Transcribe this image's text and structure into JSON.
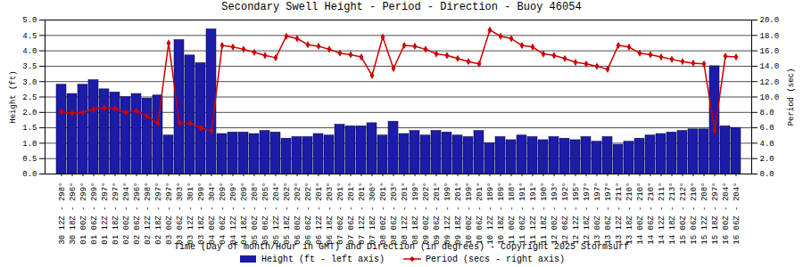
{
  "chart_data": {
    "type": "bar",
    "title": "Secondary Swell Height - Period - Direction - Buoy 46054",
    "xlabel": "Time (Day of month/Hour in GMT) and Direction (in degrees) - Copyright 2025 Stormsurf",
    "ylabel": "Height (ft)",
    "y2label": "Period (sec)",
    "categories": [
      "30 12Z - 298°",
      "30 18Z - 296°",
      "01 00Z - 299°",
      "01 06Z - 299°",
      "01 12Z - 297°",
      "01 18Z - 297°",
      "02 00Z - 294°",
      "02 06Z - 296°",
      "02 12Z - 298°",
      "02 18Z - 297°",
      "03 00Z - 297°",
      "03 06Z - 303°",
      "03 12Z - 301°",
      "03 18Z - 299°",
      "04 00Z - 304°",
      "04 06Z - 209°",
      "04 12Z - 209°",
      "04 18Z - 209°",
      "05 00Z - 208°",
      "05 06Z - 205°",
      "05 12Z - 204°",
      "05 18Z - 202°",
      "06 00Z - 202°",
      "06 06Z - 202°",
      "06 12Z - 201°",
      "06 18Z - 203°",
      "07 00Z - 201°",
      "07 06Z - 201°",
      "07 12Z - 201°",
      "07 18Z - 300°",
      "08 00Z - 201°",
      "08 06Z - 203°",
      "08 12Z - 201°",
      "08 18Z - 199°",
      "09 00Z - 202°",
      "09 06Z - 201°",
      "09 12Z - 199°",
      "09 18Z - 201°",
      "10 00Z - 199°",
      "10 06Z - 201°",
      "10 12Z - 189°",
      "10 18Z - 189°",
      "11 00Z - 188°",
      "11 06Z - 191°",
      "11 12Z - 191°",
      "11 18Z - 190°",
      "12 00Z - 193°",
      "12 06Z - 192°",
      "12 12Z - 195°",
      "12 18Z - 197°",
      "13 00Z - 197°",
      "13 06Z - 197°",
      "13 12Z - 211°",
      "13 18Z - 210°",
      "14 00Z - 210°",
      "14 06Z - 210°",
      "14 12Z - 211°",
      "14 18Z - 213°",
      "15 00Z - 212°",
      "15 06Z - 210°",
      "15 12Z - 208°",
      "15 18Z - 297°",
      "16 00Z - 204°",
      "16 06Z - 204°"
    ],
    "series": [
      {
        "name": "Height (ft - left axis)",
        "type": "bar",
        "color": "#1c1ca8",
        "values": [
          2.9,
          2.6,
          2.9,
          3.05,
          2.75,
          2.65,
          2.5,
          2.6,
          2.45,
          2.55,
          1.25,
          4.35,
          3.85,
          3.6,
          4.7,
          1.3,
          1.35,
          1.35,
          1.3,
          1.4,
          1.35,
          1.15,
          1.2,
          1.2,
          1.3,
          1.25,
          1.6,
          1.55,
          1.55,
          1.65,
          1.25,
          1.7,
          1.3,
          1.4,
          1.25,
          1.4,
          1.35,
          1.25,
          1.2,
          1.4,
          1.0,
          1.2,
          1.1,
          1.25,
          1.2,
          1.1,
          1.2,
          1.15,
          1.1,
          1.2,
          1.05,
          1.2,
          0.95,
          1.05,
          1.15,
          1.25,
          1.3,
          1.35,
          1.4,
          1.45,
          1.45,
          3.5,
          1.55,
          1.5
        ]
      },
      {
        "name": "Period (secs - right axis)",
        "type": "line",
        "axis": "y2",
        "color": "#cc0000",
        "marker": "diamond",
        "line_style": "solid",
        "values": [
          8.1,
          7.9,
          8.0,
          8.4,
          8.6,
          8.5,
          8.0,
          8.2,
          7.5,
          6.6,
          17.0,
          6.6,
          6.6,
          6.0,
          5.6,
          16.7,
          16.5,
          16.2,
          15.8,
          15.4,
          15.1,
          17.9,
          17.6,
          16.8,
          16.6,
          16.2,
          15.7,
          15.5,
          15.2,
          12.8,
          17.8,
          13.7,
          16.7,
          16.6,
          16.2,
          15.6,
          15.4,
          15.0,
          14.6,
          14.3,
          18.7,
          17.9,
          17.6,
          16.7,
          16.5,
          15.6,
          15.4,
          15.0,
          14.5,
          14.3,
          14.0,
          13.6,
          16.7,
          16.5,
          15.7,
          15.5,
          15.2,
          14.9,
          14.6,
          14.4,
          14.3,
          5.6,
          15.3,
          15.2
        ]
      }
    ],
    "ylim": [
      0,
      5
    ],
    "yticks": [
      {
        "value": 0,
        "label": "0.0"
      },
      {
        "value": 0.5,
        "label": "0.5"
      },
      {
        "value": 1,
        "label": "1.0"
      },
      {
        "value": 1.5,
        "label": "1.5"
      },
      {
        "value": 2,
        "label": "2.0"
      },
      {
        "value": 2.5,
        "label": "2.5"
      },
      {
        "value": 3,
        "label": "3.0"
      },
      {
        "value": 3.5,
        "label": "3.5"
      },
      {
        "value": 4,
        "label": "4.0"
      },
      {
        "value": 4.5,
        "label": "4.5"
      },
      {
        "value": 5,
        "label": "5.0"
      }
    ],
    "y2lim": [
      0,
      20
    ],
    "y2ticks": [
      {
        "value": 0,
        "label": "0.0"
      },
      {
        "value": 2,
        "label": "2.0"
      },
      {
        "value": 4,
        "label": "4.0"
      },
      {
        "value": 6,
        "label": "6.0"
      },
      {
        "value": 8,
        "label": "8.0"
      },
      {
        "value": 10,
        "label": "10.0"
      },
      {
        "value": 12,
        "label": "12.0"
      },
      {
        "value": 14,
        "label": "14.0"
      },
      {
        "value": 16,
        "label": "16.0"
      },
      {
        "value": 18,
        "label": "18.0"
      },
      {
        "value": 20,
        "label": "20.0"
      }
    ],
    "grid": true,
    "legend": "bottom"
  }
}
